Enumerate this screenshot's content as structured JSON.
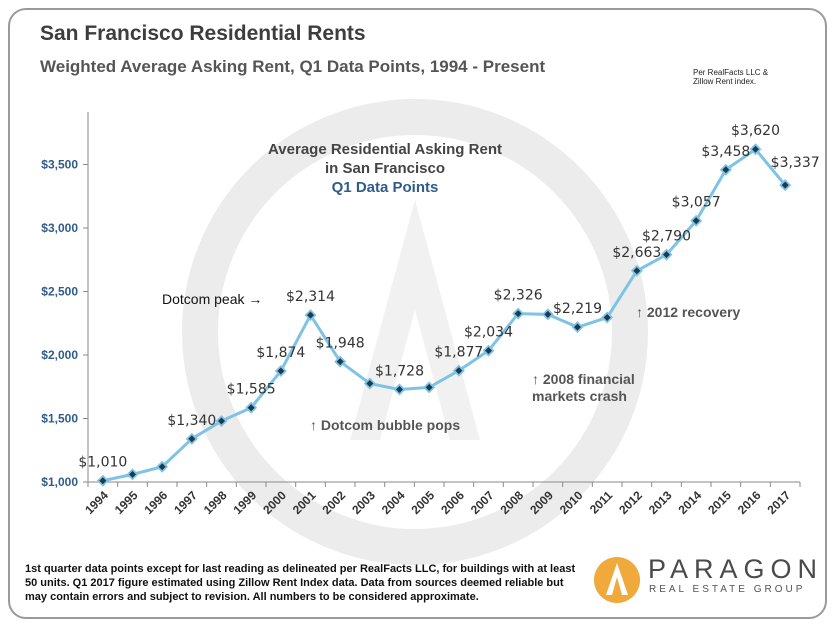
{
  "header": {
    "title": "San Francisco Residential Rents",
    "subtitle": "Weighted Average Asking Rent, Q1 Data Points, 1994 - Present",
    "source_lines": [
      "Per RealFacts LLC &",
      "Zillow Rent index."
    ]
  },
  "chart_data": {
    "type": "line",
    "x": [
      "1994",
      "1995",
      "1996",
      "1997",
      "1998",
      "1999",
      "2000",
      "2001",
      "2002",
      "2003",
      "2004",
      "2005",
      "2006",
      "2007",
      "2008",
      "2009",
      "2010",
      "2011",
      "2012",
      "2013",
      "2014",
      "2015",
      "2016",
      "2017"
    ],
    "y": [
      1010,
      1060,
      1120,
      1340,
      1480,
      1585,
      1874,
      2314,
      1948,
      1775,
      1728,
      1745,
      1877,
      2034,
      2326,
      2320,
      2219,
      2295,
      2663,
      2790,
      3057,
      3458,
      3620,
      3337
    ],
    "data_labels": [
      {
        "x": "1994",
        "text": "$1,010"
      },
      {
        "x": "1997",
        "text": "$1,340"
      },
      {
        "x": "1999",
        "text": "$1,585"
      },
      {
        "x": "2000",
        "text": "$1,874"
      },
      {
        "x": "2001",
        "text": "$2,314"
      },
      {
        "x": "2002",
        "text": "$1,948"
      },
      {
        "x": "2004",
        "text": "$1,728"
      },
      {
        "x": "2006",
        "text": "$1,877"
      },
      {
        "x": "2007",
        "text": "$2,034"
      },
      {
        "x": "2008",
        "text": "$2,326"
      },
      {
        "x": "2010",
        "text": "$2,219"
      },
      {
        "x": "2012",
        "text": "$2,663"
      },
      {
        "x": "2013",
        "text": "$2,790"
      },
      {
        "x": "2014",
        "text": "$3,057"
      },
      {
        "x": "2015",
        "text": "$3,458"
      },
      {
        "x": "2016",
        "text": "$3,620"
      },
      {
        "x": "2017",
        "text": "$3,337"
      }
    ],
    "ylim": [
      1000,
      3850
    ],
    "y_ticks": [
      1000,
      1500,
      2000,
      2500,
      3000,
      3500
    ],
    "y_tick_labels": [
      "$1,000",
      "$1,500",
      "$2,000",
      "$2,500",
      "$3,000",
      "$3,500"
    ],
    "grid": false,
    "line_color": "#7ec3e6",
    "marker_color": "#1f3a4d",
    "inner_title": [
      "Average Residential Asking Rent",
      "in San Francisco"
    ],
    "inner_subtitle": "Q1 Data Points",
    "annotations": [
      {
        "id": "dotcom-peak",
        "lines": [
          "Dotcom peak →"
        ]
      },
      {
        "id": "dotcom-pops",
        "lines": [
          "↑ Dotcom bubble pops"
        ]
      },
      {
        "id": "financial-crash",
        "lines": [
          "↑ 2008 financial",
          "markets crash"
        ]
      },
      {
        "id": "recovery",
        "lines": [
          "↑ 2012 recovery"
        ]
      }
    ]
  },
  "footnote": "1st quarter data points except for last reading as delineated per RealFacts LLC, for buildings with at least 50 units. Q1 2017 figure estimated using Zillow Rent Index data. Data from sources deemed reliable but may contain errors and subject to revision. All numbers to be considered approximate.",
  "logo": {
    "name": "PARAGON",
    "tagline": "REAL ESTATE GROUP"
  }
}
